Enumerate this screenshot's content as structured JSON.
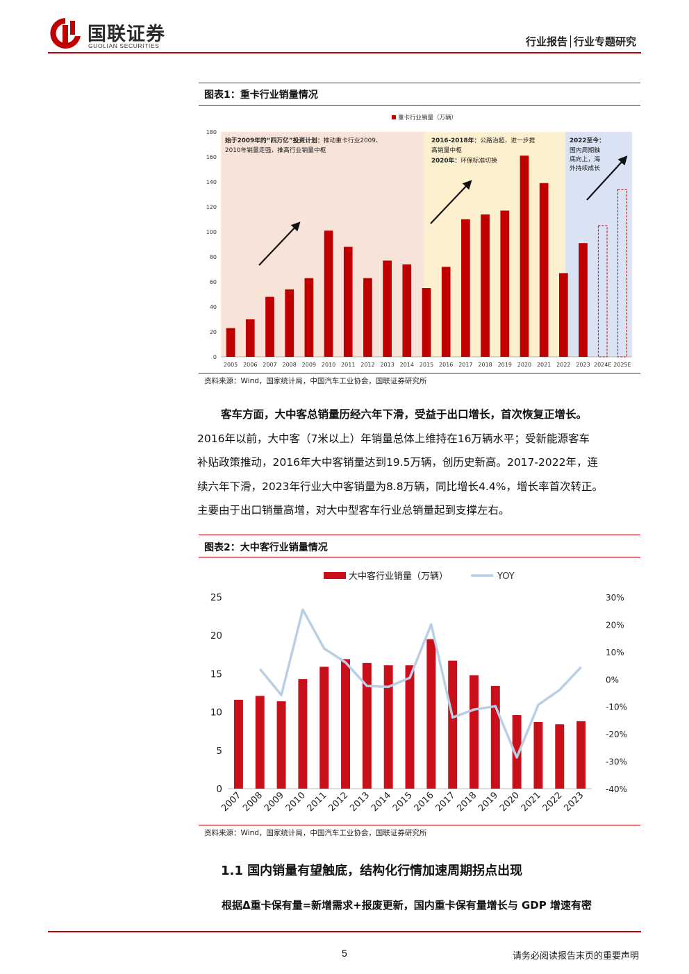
{
  "header": {
    "logo_cn": "国联证券",
    "logo_en": "GUOLIAN SECURITIES",
    "report_type": "行业报告│行业专题研究",
    "brand_color": "#c00000"
  },
  "figure1": {
    "title": "图表1：重卡行业销量情况",
    "source": "资料来源：Wind，国家统计局，中国汽车工业协会，国联证券研究所",
    "annotations": {
      "a1_bold": "始于2009年的“四万亿”投资计划：",
      "a1_rest1": "推动重卡行业2009、",
      "a1_rest2": "2010年销量走强，推高行业销量中枢",
      "a2_bold": "2016-2018年：",
      "a2_rest1": "公路治超，进一步提",
      "a2_rest2": "高销量中枢",
      "a3_bold": "2020年：",
      "a3_rest": "环保标准切换",
      "a4_bold": "2022至今：",
      "a4_l1": "国内周期触",
      "a4_l2": "底向上，海",
      "a4_l3": "外持续成长"
    }
  },
  "figure2": {
    "title": "图表2：大中客行业销量情况",
    "source": "资料来源：Wind，国家统计局，中国汽车工业协会，国联证券研究所"
  },
  "paragraph": {
    "lead": "客车方面，大中客总销量历经六年下滑，受益于出口增长，首次恢复正增长。",
    "line2": "2016年以前，大中客（7米以上）年销量总体上维持在16万辆水平；受新能源客车",
    "line3": "补贴政策推动，2016年大中客销量达到19.5万辆，创历史新高。2017-2022年，连",
    "line4": "续六年下滑，2023年行业大中客销量为8.8万辆，同比增长4.4%，增长率首次转正。",
    "line5": "主要由于出口销量高增，对大中型客车行业总销量起到支撑左右。"
  },
  "section": {
    "heading": "1.1 国内销量有望触底，结构化行情加速周期拐点出现",
    "bold_line": "根据Δ重卡保有量=新增需求+报废更新，国内重卡保有量增长与 GDP 增速有密"
  },
  "footer": {
    "page": "5",
    "note": "请务必阅读报告末页的重要声明"
  },
  "chart_data": [
    {
      "type": "bar",
      "series": [
        {
          "name": "重卡行业销量（万辆）",
          "values": [
            23,
            30,
            48,
            54,
            63,
            101,
            88,
            63,
            77,
            74,
            55,
            72,
            110,
            114,
            117,
            161,
            139,
            67,
            91,
            105,
            134
          ]
        }
      ],
      "categories": [
        "2005",
        "2006",
        "2007",
        "2008",
        "2009",
        "2010",
        "2011",
        "2012",
        "2013",
        "2014",
        "2015",
        "2016",
        "2017",
        "2018",
        "2019",
        "2020",
        "2021",
        "2022",
        "2023",
        "2024E",
        "2025E"
      ],
      "ylim": [
        0,
        180
      ],
      "yticks": [
        0,
        20,
        40,
        60,
        80,
        100,
        120,
        140,
        160,
        180
      ],
      "estimate_categories": [
        "2024E",
        "2025E"
      ],
      "legend_position": "top",
      "colors": {
        "bar": "#c00000",
        "phase1": "#f8e3d8",
        "phase2": "#fdf0cf",
        "phase3": "#d9e3f3"
      }
    },
    {
      "type": "bar",
      "categories": [
        "2007",
        "2008",
        "2009",
        "2010",
        "2011",
        "2012",
        "2013",
        "2014",
        "2015",
        "2016",
        "2017",
        "2018",
        "2019",
        "2020",
        "2021",
        "2022",
        "2023"
      ],
      "series": [
        {
          "name": "大中客行业销量（万辆）",
          "axis": "left",
          "values": [
            11.6,
            12.1,
            11.4,
            14.3,
            15.9,
            16.9,
            16.4,
            16.1,
            16.1,
            19.5,
            16.7,
            14.8,
            13.4,
            9.6,
            8.7,
            8.4,
            8.8
          ]
        },
        {
          "name": "YOY",
          "type": "line",
          "axis": "right",
          "values": [
            null,
            3.7,
            -5.8,
            25.4,
            11.2,
            6.1,
            -2.5,
            -2.8,
            0.5,
            20.0,
            -14.0,
            -11.1,
            -9.9,
            -28.6,
            -9.4,
            -3.9,
            4.4
          ]
        }
      ],
      "ylim": [
        0,
        25
      ],
      "yticks": [
        0,
        5,
        10,
        15,
        20,
        25
      ],
      "y2lim": [
        -40,
        30
      ],
      "y2ticks": [
        "-40%",
        "-30%",
        "-20%",
        "-10%",
        "0%",
        "10%",
        "20%",
        "30%"
      ],
      "legend_position": "top",
      "colors": {
        "bar": "#c80f1a",
        "line": "#b8cfe6"
      }
    }
  ]
}
